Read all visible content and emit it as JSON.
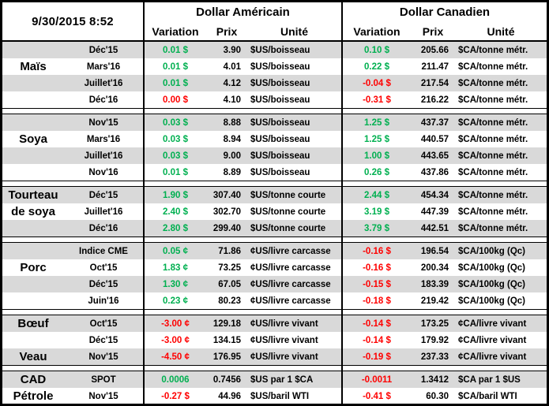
{
  "report": {
    "timestamp": "9/30/2015 8:52",
    "usd_section_title": "Dollar Américain",
    "cad_section_title": "Dollar Canadien",
    "col_variation": "Variation",
    "col_prix": "Prix",
    "col_unite": "Unité"
  },
  "colors": {
    "positive": "#00B050",
    "negative": "#FF0000",
    "stripe": "#D9D9D9",
    "border": "#000000"
  },
  "sections": [
    {
      "name": "Maïs",
      "rows": [
        {
          "label": "",
          "contract": "Déc'15",
          "us": {
            "var": "0.01 $",
            "dir": "up",
            "prix": "3.90",
            "unit": "$US/boisseau"
          },
          "ca": {
            "var": "0.10 $",
            "dir": "up",
            "prix": "205.66",
            "unit": "$CA/tonne métr."
          }
        },
        {
          "label": "Maïs",
          "contract": "Mars'16",
          "us": {
            "var": "0.01 $",
            "dir": "up",
            "prix": "4.01",
            "unit": "$US/boisseau"
          },
          "ca": {
            "var": "0.22 $",
            "dir": "up",
            "prix": "211.47",
            "unit": "$CA/tonne métr."
          }
        },
        {
          "label": "",
          "contract": "Juillet'16",
          "us": {
            "var": "0.01 $",
            "dir": "up",
            "prix": "4.12",
            "unit": "$US/boisseau"
          },
          "ca": {
            "var": "-0.04 $",
            "dir": "down",
            "prix": "217.54",
            "unit": "$CA/tonne métr."
          }
        },
        {
          "label": "",
          "contract": "Déc'16",
          "us": {
            "var": "0.00 $",
            "dir": "down",
            "prix": "4.10",
            "unit": "$US/boisseau"
          },
          "ca": {
            "var": "-0.31 $",
            "dir": "down",
            "prix": "216.22",
            "unit": "$CA/tonne métr."
          }
        }
      ]
    },
    {
      "name": "Soya",
      "rows": [
        {
          "label": "",
          "contract": "Nov'15",
          "us": {
            "var": "0.03 $",
            "dir": "up",
            "prix": "8.88",
            "unit": "$US/boisseau"
          },
          "ca": {
            "var": "1.25 $",
            "dir": "up",
            "prix": "437.37",
            "unit": "$CA/tonne métr."
          }
        },
        {
          "label": "Soya",
          "contract": "Mars'16",
          "us": {
            "var": "0.03 $",
            "dir": "up",
            "prix": "8.94",
            "unit": "$US/boisseau"
          },
          "ca": {
            "var": "1.25 $",
            "dir": "up",
            "prix": "440.57",
            "unit": "$CA/tonne métr."
          }
        },
        {
          "label": "",
          "contract": "Juillet'16",
          "us": {
            "var": "0.03 $",
            "dir": "up",
            "prix": "9.00",
            "unit": "$US/boisseau"
          },
          "ca": {
            "var": "1.00 $",
            "dir": "up",
            "prix": "443.65",
            "unit": "$CA/tonne métr."
          }
        },
        {
          "label": "",
          "contract": "Nov'16",
          "us": {
            "var": "0.01 $",
            "dir": "up",
            "prix": "8.89",
            "unit": "$US/boisseau"
          },
          "ca": {
            "var": "0.26 $",
            "dir": "up",
            "prix": "437.86",
            "unit": "$CA/tonne métr."
          }
        }
      ]
    },
    {
      "name": "Tourteau de soya",
      "rows": [
        {
          "label": "Tourteau",
          "contract": "Déc'15",
          "us": {
            "var": "1.90 $",
            "dir": "up",
            "prix": "307.40",
            "unit": "$US/tonne courte"
          },
          "ca": {
            "var": "2.44 $",
            "dir": "up",
            "prix": "454.34",
            "unit": "$CA/tonne métr."
          }
        },
        {
          "label": "de soya",
          "contract": "Juillet'16",
          "us": {
            "var": "2.40 $",
            "dir": "up",
            "prix": "302.70",
            "unit": "$US/tonne courte"
          },
          "ca": {
            "var": "3.19 $",
            "dir": "up",
            "prix": "447.39",
            "unit": "$CA/tonne métr."
          }
        },
        {
          "label": "",
          "contract": "Déc'16",
          "us": {
            "var": "2.80 $",
            "dir": "up",
            "prix": "299.40",
            "unit": "$US/tonne courte"
          },
          "ca": {
            "var": "3.79 $",
            "dir": "up",
            "prix": "442.51",
            "unit": "$CA/tonne métr."
          }
        }
      ]
    },
    {
      "name": "Porc",
      "rows": [
        {
          "label": "",
          "contract": "Indice CME",
          "us": {
            "var": "0.05 ¢",
            "dir": "up",
            "prix": "71.86",
            "unit": "¢US/livre carcasse"
          },
          "ca": {
            "var": "-0.16 $",
            "dir": "down",
            "prix": "196.54",
            "unit": "$CA/100kg (Qc)"
          }
        },
        {
          "label": "Porc",
          "contract": "Oct'15",
          "us": {
            "var": "1.83 ¢",
            "dir": "up",
            "prix": "73.25",
            "unit": "¢US/livre carcasse"
          },
          "ca": {
            "var": "-0.16 $",
            "dir": "down",
            "prix": "200.34",
            "unit": "$CA/100kg (Qc)"
          }
        },
        {
          "label": "",
          "contract": "Déc'15",
          "us": {
            "var": "1.30 ¢",
            "dir": "up",
            "prix": "67.05",
            "unit": "¢US/livre carcasse"
          },
          "ca": {
            "var": "-0.15 $",
            "dir": "down",
            "prix": "183.39",
            "unit": "$CA/100kg (Qc)"
          }
        },
        {
          "label": "",
          "contract": "Juin'16",
          "us": {
            "var": "0.23 ¢",
            "dir": "up",
            "prix": "80.23",
            "unit": "¢US/livre carcasse"
          },
          "ca": {
            "var": "-0.18 $",
            "dir": "down",
            "prix": "219.42",
            "unit": "$CA/100kg (Qc)"
          }
        }
      ]
    },
    {
      "name": "Bœuf / Veau",
      "rows": [
        {
          "label": "Bœuf",
          "contract": "Oct'15",
          "us": {
            "var": "-3.00 ¢",
            "dir": "down",
            "prix": "129.18",
            "unit": "¢US/livre vivant"
          },
          "ca": {
            "var": "-0.14 $",
            "dir": "down",
            "prix": "173.25",
            "unit": "¢CA/livre vivant"
          }
        },
        {
          "label": "",
          "contract": "Déc'15",
          "us": {
            "var": "-3.00 ¢",
            "dir": "down",
            "prix": "134.15",
            "unit": "¢US/livre vivant"
          },
          "ca": {
            "var": "-0.14 $",
            "dir": "down",
            "prix": "179.92",
            "unit": "¢CA/livre vivant"
          }
        },
        {
          "label": "Veau",
          "contract": "Nov'15",
          "us": {
            "var": "-4.50 ¢",
            "dir": "down",
            "prix": "176.95",
            "unit": "¢US/livre vivant"
          },
          "ca": {
            "var": "-0.19 $",
            "dir": "down",
            "prix": "237.33",
            "unit": "¢CA/livre vivant"
          }
        }
      ]
    },
    {
      "name": "CAD / Pétrole",
      "rows": [
        {
          "label": "CAD",
          "contract": "SPOT",
          "us": {
            "var": "0.0006",
            "dir": "up",
            "prix": "0.7456",
            "unit": "$US par 1 $CA"
          },
          "ca": {
            "var": "-0.0011",
            "dir": "down",
            "prix": "1.3412",
            "unit": "$CA par 1 $US"
          }
        },
        {
          "label": "Pétrole",
          "contract": "Nov'15",
          "us": {
            "var": "-0.27 $",
            "dir": "down",
            "prix": "44.96",
            "unit": "$US/baril WTI"
          },
          "ca": {
            "var": "-0.41 $",
            "dir": "down",
            "prix": "60.30",
            "unit": "$CA/baril WTI"
          }
        }
      ]
    }
  ]
}
